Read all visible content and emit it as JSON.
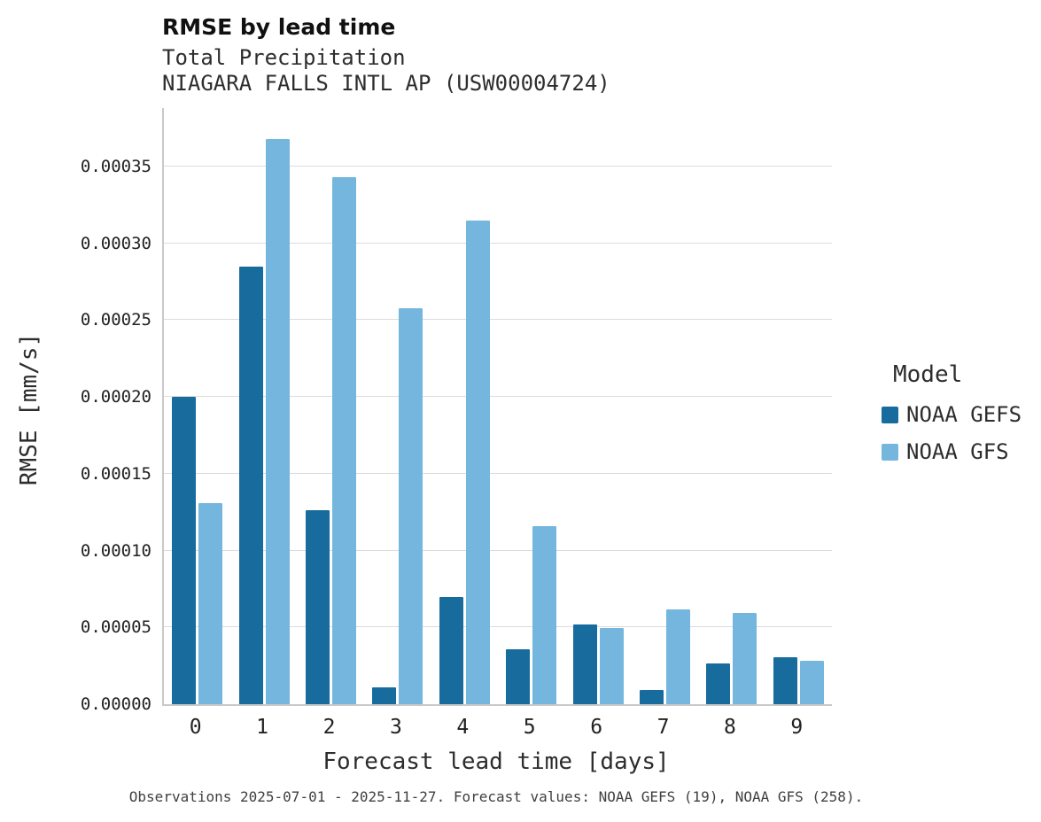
{
  "title": "RMSE by lead time",
  "subtitle1": "Total Precipitation",
  "subtitle2": "NIAGARA FALLS INTL AP (USW00004724)",
  "caption": "Observations 2025-07-01 - 2025-11-27. Forecast values: NOAA GEFS (19), NOAA GFS (258).",
  "legend": {
    "title": "Model",
    "entries": [
      {
        "label": "NOAA GEFS",
        "color": "#176c9d"
      },
      {
        "label": "NOAA GFS",
        "color": "#74b6dd"
      }
    ]
  },
  "colors": {
    "gefs": "#176c9d",
    "gfs": "#74b6dd",
    "gridline": "#dcdcdc",
    "spine": "#c9c9c9"
  },
  "chart_data": {
    "type": "bar",
    "title": "RMSE by lead time",
    "subtitle": [
      "Total Precipitation",
      "NIAGARA FALLS INTL AP (USW00004724)"
    ],
    "xlabel": "Forecast lead time [days]",
    "ylabel": "RMSE [mm/s]",
    "categories": [
      "0",
      "1",
      "2",
      "3",
      "4",
      "5",
      "6",
      "7",
      "8",
      "9"
    ],
    "series": [
      {
        "name": "NOAA GEFS",
        "color": "#176c9d",
        "values": [
          0.0002,
          0.000285,
          0.000126,
          1.1e-05,
          6.95e-05,
          3.55e-05,
          5.2e-05,
          9.5e-06,
          2.65e-05,
          3.05e-05
        ]
      },
      {
        "name": "NOAA GFS",
        "color": "#74b6dd",
        "values": [
          0.000131,
          0.000368,
          0.000343,
          0.000258,
          0.000315,
          0.000116,
          4.95e-05,
          6.15e-05,
          5.95e-05,
          2.85e-05
        ]
      }
    ],
    "ylim": [
      0,
      0.000388
    ],
    "yticks": [
      0,
      5e-05,
      0.0001,
      0.00015,
      0.0002,
      0.00025,
      0.0003,
      0.00035
    ],
    "ytick_labels": [
      "0.00000",
      "0.00005",
      "0.00010",
      "0.00015",
      "0.00020",
      "0.00025",
      "0.00030",
      "0.00035"
    ],
    "grid": true,
    "legend_title": "Model",
    "legend_position": "right"
  }
}
